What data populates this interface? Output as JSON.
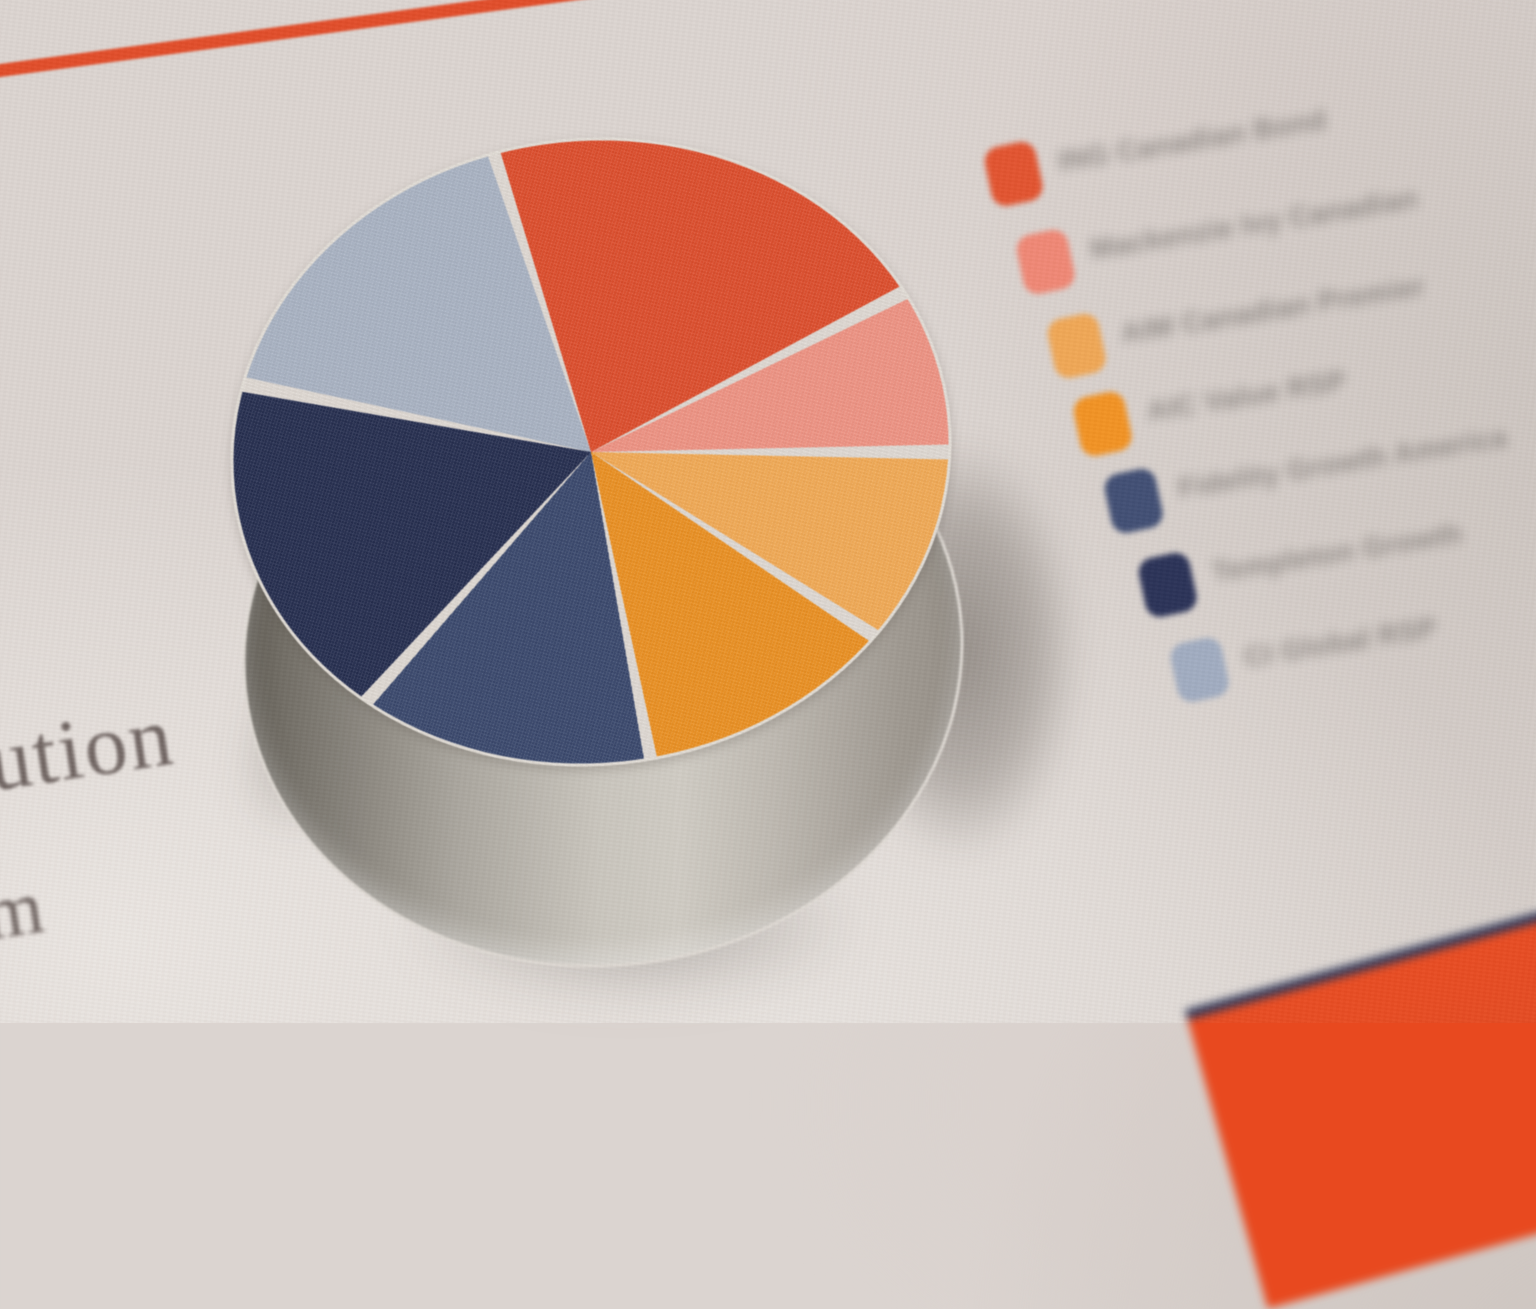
{
  "colors": {
    "paper": "#dbd4d0",
    "rule_red": "#e14a26",
    "corner_orange": "#e8491f",
    "corner_navy": "#2b3152",
    "divider_white": "#ded8d2",
    "side_silver": "#c6c2ba",
    "shadow_gray": "#6f675f",
    "legend_text": "#8a8480",
    "article_text": "#6e6360"
  },
  "text_fragments": {
    "line1": "ution",
    "line2": "m"
  },
  "legend": {
    "position": "right",
    "legibility": "out-of-focus",
    "items": [
      {
        "label": "ING Canadian Bond",
        "color": "#e2512c"
      },
      {
        "label": "Mackenzie Ivy Canadian",
        "color": "#f08673"
      },
      {
        "label": "AIM Canadian Premier",
        "color": "#f0a653"
      },
      {
        "label": "AIC Value RSP",
        "color": "#f29120"
      },
      {
        "label": "Fidelity Growth America",
        "color": "#3e4c72"
      },
      {
        "label": "Templeton Growth",
        "color": "#272f55"
      },
      {
        "label": "CI Global RSP",
        "color": "#9fabc0"
      }
    ]
  },
  "chart_data": {
    "type": "pie",
    "style": "3d-paper-cutout-photo",
    "title": "",
    "labels_visible_on_slices": false,
    "legend_position": "right",
    "start_angle_deg": -12,
    "separator_gap_deg": 1.2,
    "slices": [
      {
        "name": "ING Canadian Bond",
        "color": "#dc4a28",
        "angle_deg": 81,
        "percent": 22.5
      },
      {
        "name": "Mackenzie Ivy Canadian",
        "color": "#ee9181",
        "angle_deg": 27,
        "percent": 7.5
      },
      {
        "name": "AIM Canadian Premier",
        "color": "#f1a852",
        "angle_deg": 33,
        "percent": 9.2
      },
      {
        "name": "AIC Value RSP",
        "color": "#ea8e1e",
        "angle_deg": 46,
        "percent": 12.8
      },
      {
        "name": "Fidelity Growth America",
        "color": "#36456a",
        "angle_deg": 53,
        "percent": 14.7
      },
      {
        "name": "Templeton Growth",
        "color": "#212a4c",
        "angle_deg": 59,
        "percent": 16.4
      },
      {
        "name": "CI Global RSP",
        "color": "#a7b1c2",
        "angle_deg": 61,
        "percent": 16.9
      }
    ]
  }
}
